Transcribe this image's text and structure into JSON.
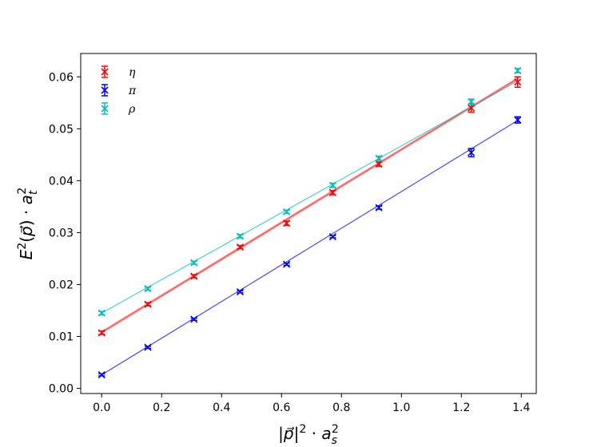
{
  "chart_data": {
    "type": "scatter",
    "title": "",
    "xlabel": "|p⃗|² · a_s²",
    "ylabel": "E²(p⃗) · a_t²",
    "xlim": [
      -0.07,
      1.45
    ],
    "ylim": [
      -0.001,
      0.0645
    ],
    "grid": false,
    "legend_position": "top-left",
    "x_ticks": [
      0.0,
      0.2,
      0.4,
      0.6,
      0.8,
      1.0,
      1.2,
      1.4
    ],
    "x_tick_labels": [
      "0.0",
      "0.2",
      "0.4",
      "0.6",
      "0.8",
      "1.0",
      "1.2",
      "1.4"
    ],
    "y_ticks": [
      0.0,
      0.01,
      0.02,
      0.03,
      0.04,
      0.05,
      0.06
    ],
    "y_tick_labels": [
      "0.00",
      "0.01",
      "0.02",
      "0.03",
      "0.04",
      "0.05",
      "0.06"
    ],
    "series": [
      {
        "name": "η",
        "color": "#ff0000",
        "x": [
          0.0,
          0.154,
          0.308,
          0.462,
          0.617,
          0.771,
          0.925,
          1.233,
          1.388
        ],
        "y": [
          0.0107,
          0.0162,
          0.0216,
          0.0272,
          0.0318,
          0.0377,
          0.0432,
          0.054,
          0.059
        ],
        "yerr": [
          0.0003,
          0.0003,
          0.0003,
          0.0003,
          0.0004,
          0.0004,
          0.0004,
          0.0008,
          0.001
        ],
        "fit": {
          "slope": 0.0352,
          "intercept": 0.0108,
          "band": 0.0003
        }
      },
      {
        "name": "π",
        "color": "#0000ff",
        "x": [
          0.0,
          0.154,
          0.308,
          0.462,
          0.617,
          0.771,
          0.925,
          1.233,
          1.388
        ],
        "y": [
          0.0026,
          0.0079,
          0.0133,
          0.0186,
          0.0239,
          0.0292,
          0.0348,
          0.0454,
          0.0517
        ],
        "yerr": [
          0.0002,
          0.0002,
          0.0002,
          0.0002,
          0.0002,
          0.0002,
          0.0003,
          0.0008,
          0.0006
        ],
        "fit": {
          "slope": 0.0353,
          "intercept": 0.0026,
          "band": 0.0001
        }
      },
      {
        "name": "ρ",
        "color": "#00bfbf",
        "x": [
          0.0,
          0.154,
          0.308,
          0.462,
          0.617,
          0.771,
          0.925,
          1.233,
          1.388
        ],
        "y": [
          0.0145,
          0.0192,
          0.0242,
          0.0293,
          0.034,
          0.0391,
          0.0443,
          0.0552,
          0.0612
        ],
        "yerr": [
          0.0003,
          0.0003,
          0.0003,
          0.0003,
          0.0003,
          0.0004,
          0.0004,
          0.0005,
          0.0004
        ],
        "fit": {
          "slope": 0.0322,
          "intercept": 0.0145,
          "band": 0.0001
        }
      }
    ]
  }
}
